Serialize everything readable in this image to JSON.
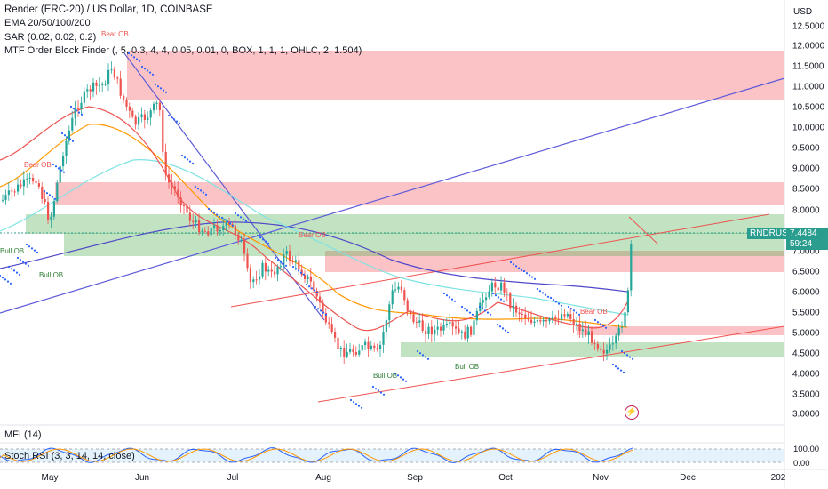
{
  "legend": {
    "title": "Render (ERC-20) / US Dollar, 1D, COINBASE",
    "ema": "EMA 20/50/100/200",
    "sar": "SAR (0.02, 0.02, 0.2)",
    "mtf": "MTF Order Block Finder (, 5, 0.3, 4, 4, 0.05, 0.01, 0, BOX, 1, 1, 1, OHLC, 2, 1.504)"
  },
  "currency": "USD",
  "price_axis": [
    "12.5000",
    "12.0000",
    "11.5000",
    "11.0000",
    "10.5000",
    "10.0000",
    "9.5000",
    "9.0000",
    "8.5000",
    "8.0000",
    "7.0000",
    "6.5000",
    "6.0000",
    "5.5000",
    "5.0000",
    "4.5000",
    "4.0000",
    "3.5000",
    "3.0000"
  ],
  "symbol_tag": "RNDRUSD",
  "last_price": "7.4484",
  "countdown": "59:24",
  "order_block_labels": {
    "bear": "Bear OB",
    "bull": "Bull OB"
  },
  "indicators": {
    "mfi": "MFI (14)",
    "stoch": "Stoch RSI (3, 3, 14, 14, close)",
    "stoch_axis": [
      "100.00",
      "0.00"
    ]
  },
  "time_axis": [
    "May",
    "Jun",
    "Jul",
    "Aug",
    "Sep",
    "Oct",
    "Nov",
    "Dec",
    "202"
  ],
  "colors": {
    "bull_candle": "#26a69a",
    "bear_candle": "#ef5350",
    "bear_zone": "rgba(247,82,95,0.35)",
    "bull_zone": "rgba(76,175,80,0.35)",
    "trendline": "#5e5bd8",
    "ema20": "#ef5350",
    "ema50": "#ff9800",
    "ema100": "#7ee3e3",
    "ema200": "#5048c8",
    "sar": "#2962ff",
    "price_tag": "#2a9d8f"
  }
}
